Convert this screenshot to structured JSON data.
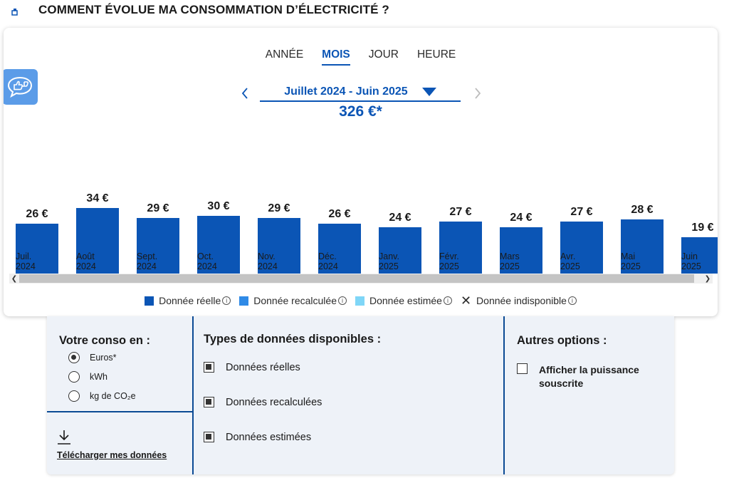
{
  "header": {
    "title": "COMMENT ÉVOLUE MA CONSOMMATION D’ÉLECTRICITÉ ?"
  },
  "tabs": [
    {
      "label": "ANNÉE",
      "active": false
    },
    {
      "label": "MOIS",
      "active": true
    },
    {
      "label": "JOUR",
      "active": false
    },
    {
      "label": "HEURE",
      "active": false
    }
  ],
  "period": {
    "label": "Juillet 2024 - Juin 2025",
    "total": "326 €*"
  },
  "colors": {
    "reelle": "#0b55b5",
    "recalculee": "#2f8ae6",
    "estimee": "#7fd6f7",
    "accent": "#0b55b5"
  },
  "chart_data": {
    "type": "bar",
    "categories": [
      "Juil. 2024",
      "Août 2024",
      "Sept. 2024",
      "Oct. 2024",
      "Nov. 2024",
      "Déc. 2024",
      "Janv. 2025",
      "Févr. 2025",
      "Mars 2025",
      "Avr. 2025",
      "Mai 2025",
      "Juin 2025"
    ],
    "category_lines": [
      [
        "Juil.",
        "2024"
      ],
      [
        "Août",
        "2024"
      ],
      [
        "Sept.",
        "2024"
      ],
      [
        "Oct.",
        "2024"
      ],
      [
        "Nov.",
        "2024"
      ],
      [
        "Déc.",
        "2024"
      ],
      [
        "Janv.",
        "2025"
      ],
      [
        "Févr.",
        "2025"
      ],
      [
        "Mars",
        "2025"
      ],
      [
        "Avr.",
        "2025"
      ],
      [
        "Mai",
        "2025"
      ],
      [
        "Juin",
        "2025"
      ]
    ],
    "values": [
      26,
      34,
      29,
      30,
      29,
      26,
      24,
      27,
      24,
      27,
      28,
      19
    ],
    "value_labels": [
      "26 €",
      "34 €",
      "29 €",
      "30 €",
      "29 €",
      "26 €",
      "24 €",
      "27 €",
      "24 €",
      "27 €",
      "28 €",
      "19 €"
    ],
    "unit": "€",
    "ylim": [
      0,
      34
    ],
    "grid": false,
    "legend_position": "bottom"
  },
  "legend": [
    {
      "label": "Donnée réelle",
      "swatch": "reelle"
    },
    {
      "label": "Donnée recalculée",
      "swatch": "recalculee"
    },
    {
      "label": "Donnée estimée",
      "swatch": "estimee"
    },
    {
      "label": "Donnée indisponible",
      "swatch": "none"
    }
  ],
  "options": {
    "conso_title": "Votre conso en :",
    "units": [
      {
        "label": "Euros*",
        "checked": true
      },
      {
        "label": "kWh",
        "checked": false
      },
      {
        "label": "kg de CO₂e",
        "checked": false
      }
    ],
    "download_label": "Télécharger mes données",
    "types_title": "Types de données disponibles :",
    "types": [
      {
        "label": "Données réelles",
        "checked": true
      },
      {
        "label": "Données recalculées",
        "checked": true
      },
      {
        "label": "Données estimées",
        "checked": true
      }
    ],
    "other_title": "Autres options :",
    "other": [
      {
        "label": "Afficher la puissance souscrite",
        "checked": false
      }
    ]
  }
}
